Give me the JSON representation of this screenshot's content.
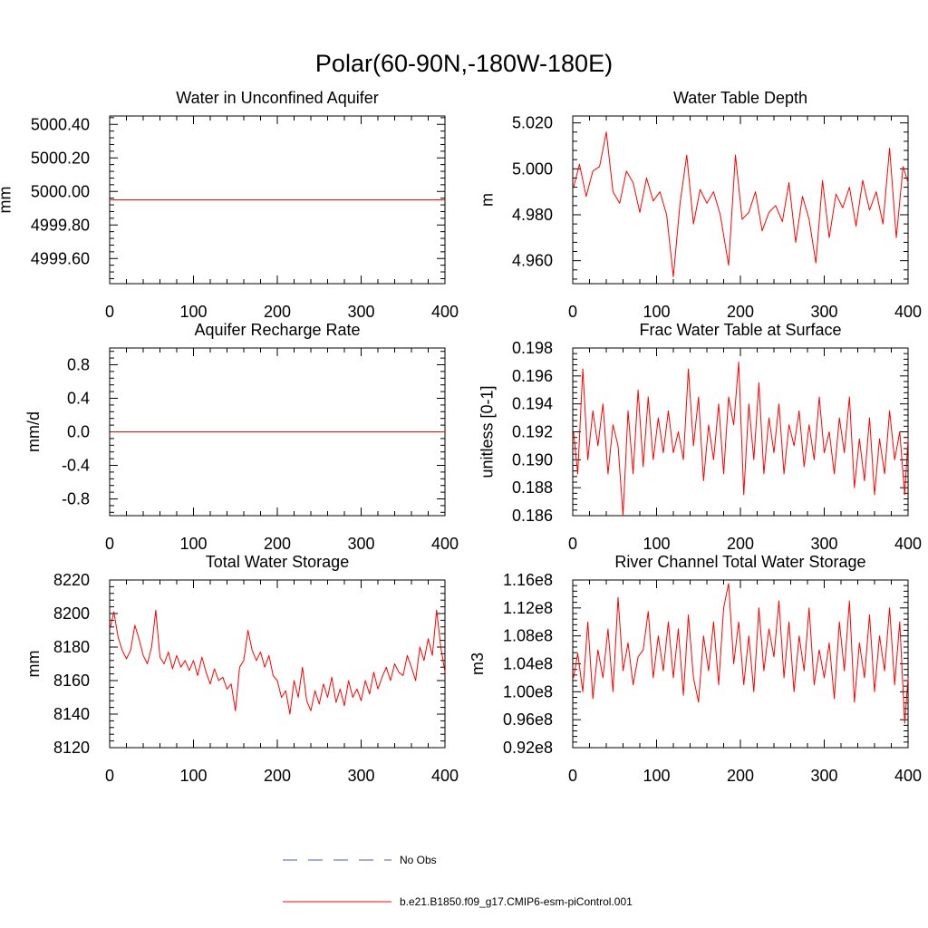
{
  "figure": {
    "title": "Polar(60-90N,-180W-180E)",
    "series_color": "#ff0000",
    "obs_color": "#4a5fa8"
  },
  "legend": {
    "obs_label": "No Obs",
    "model_label": "b.e21.B1850.f09_g17.CMIP6-esm-piControl.001"
  },
  "chart_data": [
    {
      "type": "line",
      "title": "Water in Unconfined Aquifer",
      "xlabel": "",
      "ylabel": "mm",
      "xlim": [
        0,
        400
      ],
      "ylim": [
        4999.45,
        5000.45
      ],
      "xticks": [
        0,
        100,
        200,
        300,
        400
      ],
      "xtick_labels": [
        "0",
        "100",
        "200",
        "300",
        "400"
      ],
      "yticks": [
        4999.6,
        4999.8,
        5000.0,
        5000.2,
        5000.4
      ],
      "ytick_labels": [
        "4999.60",
        "4999.80",
        "5000.00",
        "5000.20",
        "5000.40"
      ],
      "series": [
        {
          "name": "b.e21.B1850.f09_g17.CMIP6-esm-piControl.001",
          "x": [
            1,
            400
          ],
          "values": [
            4999.95,
            4999.95
          ]
        }
      ]
    },
    {
      "type": "line",
      "title": "Water Table Depth",
      "xlabel": "",
      "ylabel": "m",
      "xlim": [
        0,
        400
      ],
      "ylim": [
        4.95,
        5.023
      ],
      "xticks": [
        0,
        100,
        200,
        300,
        400
      ],
      "xtick_labels": [
        "0",
        "100",
        "200",
        "300",
        "400"
      ],
      "yticks": [
        4.96,
        4.98,
        5.0,
        5.02
      ],
      "ytick_labels": [
        "4.960",
        "4.980",
        "5.000",
        "5.020"
      ],
      "series": [
        {
          "name": "b.e21.B1850.f09_g17.CMIP6-esm-piControl.001",
          "x": [
            1,
            8,
            16,
            24,
            32,
            40,
            48,
            56,
            64,
            72,
            80,
            88,
            96,
            104,
            112,
            120,
            128,
            136,
            144,
            152,
            160,
            168,
            176,
            186,
            194,
            202,
            210,
            218,
            226,
            234,
            242,
            250,
            258,
            266,
            274,
            282,
            290,
            298,
            306,
            314,
            322,
            330,
            338,
            346,
            354,
            362,
            370,
            378,
            386,
            394,
            400
          ],
          "values": [
            4.992,
            5.002,
            4.988,
            4.999,
            5.001,
            5.016,
            4.99,
            4.985,
            4.999,
            4.994,
            4.981,
            4.996,
            4.986,
            4.99,
            4.98,
            4.953,
            4.985,
            5.006,
            4.976,
            4.991,
            4.985,
            4.99,
            4.98,
            4.958,
            5.006,
            4.978,
            4.981,
            4.99,
            4.973,
            4.981,
            4.984,
            4.977,
            4.994,
            4.968,
            4.988,
            4.978,
            4.959,
            4.995,
            4.97,
            4.989,
            4.983,
            4.992,
            4.975,
            4.995,
            4.982,
            4.99,
            4.976,
            5.009,
            4.97,
            5.001,
            4.994
          ]
        }
      ]
    },
    {
      "type": "line",
      "title": "Aquifer Recharge Rate",
      "xlabel": "",
      "ylabel": "mm/d",
      "xlim": [
        0,
        400
      ],
      "ylim": [
        -1.0,
        1.0
      ],
      "xticks": [
        0,
        100,
        200,
        300,
        400
      ],
      "xtick_labels": [
        "0",
        "100",
        "200",
        "300",
        "400"
      ],
      "yticks": [
        -0.8,
        -0.4,
        0.0,
        0.4,
        0.8
      ],
      "ytick_labels": [
        "-0.8",
        "-0.4",
        "0.0",
        "0.4",
        "0.8"
      ],
      "series": [
        {
          "name": "b.e21.B1850.f09_g17.CMIP6-esm-piControl.001",
          "x": [
            1,
            400
          ],
          "values": [
            0.0,
            0.0
          ]
        }
      ]
    },
    {
      "type": "line",
      "title": "Frac Water Table at Surface",
      "xlabel": "",
      "ylabel": "unitless [0-1]",
      "xlim": [
        0,
        400
      ],
      "ylim": [
        0.186,
        0.198
      ],
      "xticks": [
        0,
        100,
        200,
        300,
        400
      ],
      "xtick_labels": [
        "0",
        "100",
        "200",
        "300",
        "400"
      ],
      "yticks": [
        0.186,
        0.188,
        0.19,
        0.192,
        0.194,
        0.196,
        0.198
      ],
      "ytick_labels": [
        "0.186",
        "0.188",
        "0.190",
        "0.192",
        "0.194",
        "0.196",
        "0.198"
      ],
      "series": [
        {
          "name": "b.e21.B1850.f09_g17.CMIP6-esm-piControl.001",
          "x": [
            1,
            6,
            12,
            18,
            24,
            30,
            36,
            42,
            48,
            54,
            60,
            66,
            72,
            78,
            84,
            90,
            96,
            102,
            108,
            114,
            120,
            126,
            132,
            138,
            144,
            150,
            156,
            162,
            168,
            174,
            180,
            186,
            192,
            198,
            204,
            210,
            216,
            222,
            228,
            234,
            240,
            246,
            252,
            258,
            264,
            270,
            276,
            282,
            288,
            294,
            300,
            306,
            312,
            318,
            324,
            330,
            336,
            342,
            348,
            354,
            360,
            366,
            372,
            378,
            384,
            390,
            396,
            400
          ],
          "values": [
            0.192,
            0.189,
            0.1965,
            0.19,
            0.1935,
            0.191,
            0.194,
            0.189,
            0.1925,
            0.191,
            0.186,
            0.1935,
            0.189,
            0.195,
            0.1895,
            0.1945,
            0.19,
            0.193,
            0.1905,
            0.1935,
            0.1905,
            0.192,
            0.19,
            0.1965,
            0.191,
            0.1945,
            0.1885,
            0.1925,
            0.19,
            0.194,
            0.189,
            0.1945,
            0.1925,
            0.197,
            0.1875,
            0.194,
            0.19,
            0.1955,
            0.189,
            0.193,
            0.1905,
            0.194,
            0.189,
            0.1925,
            0.191,
            0.1935,
            0.1895,
            0.1925,
            0.19,
            0.1945,
            0.1905,
            0.192,
            0.189,
            0.193,
            0.1905,
            0.1945,
            0.188,
            0.1915,
            0.1885,
            0.193,
            0.1875,
            0.1915,
            0.189,
            0.1935,
            0.19,
            0.192,
            0.1875,
            0.1915
          ]
        }
      ]
    },
    {
      "type": "line",
      "title": "Total Water Storage",
      "xlabel": "",
      "ylabel": "mm",
      "xlim": [
        0,
        400
      ],
      "ylim": [
        8120,
        8220
      ],
      "xticks": [
        0,
        100,
        200,
        300,
        400
      ],
      "xtick_labels": [
        "0",
        "100",
        "200",
        "300",
        "400"
      ],
      "yticks": [
        8120,
        8140,
        8160,
        8180,
        8200,
        8220
      ],
      "ytick_labels": [
        "8120",
        "8140",
        "8160",
        "8180",
        "8200",
        "8220"
      ],
      "series": [
        {
          "name": "b.e21.B1850.f09_g17.CMIP6-esm-piControl.001",
          "x": [
            1,
            5,
            10,
            15,
            20,
            25,
            30,
            35,
            40,
            45,
            50,
            55,
            60,
            65,
            70,
            75,
            80,
            85,
            90,
            95,
            100,
            105,
            110,
            115,
            120,
            125,
            130,
            135,
            140,
            145,
            150,
            155,
            160,
            165,
            170,
            175,
            180,
            185,
            190,
            195,
            200,
            205,
            210,
            215,
            220,
            225,
            230,
            235,
            240,
            245,
            250,
            255,
            260,
            265,
            270,
            275,
            280,
            285,
            290,
            295,
            300,
            305,
            310,
            315,
            320,
            325,
            330,
            335,
            340,
            345,
            350,
            355,
            360,
            365,
            370,
            375,
            380,
            385,
            390,
            395,
            400
          ],
          "values": [
            8192,
            8201,
            8186,
            8178,
            8173,
            8178,
            8193,
            8185,
            8175,
            8170,
            8180,
            8202,
            8174,
            8170,
            8177,
            8167,
            8175,
            8168,
            8172,
            8166,
            8172,
            8163,
            8174,
            8165,
            8158,
            8167,
            8160,
            8162,
            8155,
            8158,
            8142,
            8168,
            8172,
            8190,
            8178,
            8172,
            8177,
            8168,
            8175,
            8163,
            8160,
            8150,
            8154,
            8140,
            8160,
            8150,
            8168,
            8148,
            8142,
            8154,
            8146,
            8158,
            8150,
            8162,
            8147,
            8155,
            8145,
            8160,
            8150,
            8155,
            8148,
            8160,
            8152,
            8165,
            8155,
            8162,
            8168,
            8160,
            8170,
            8165,
            8163,
            8175,
            8168,
            8160,
            8180,
            8172,
            8185,
            8175,
            8202,
            8180,
            8165
          ]
        }
      ]
    },
    {
      "type": "line",
      "title": "River Channel Total Water Storage",
      "xlabel": "",
      "ylabel": "m3",
      "xlim": [
        0,
        400
      ],
      "ylim": [
        0.92,
        1.16
      ],
      "xticks": [
        0,
        100,
        200,
        300,
        400
      ],
      "xtick_labels": [
        "0",
        "100",
        "200",
        "300",
        "400"
      ],
      "yticks": [
        0.92,
        0.96,
        1.0,
        1.04,
        1.08,
        1.12,
        1.16
      ],
      "ytick_labels": [
        "0.92e8",
        "0.96e8",
        "1.00e8",
        "1.04e8",
        "1.08e8",
        "1.12e8",
        "1.16e8"
      ],
      "series": [
        {
          "name": "b.e21.B1850.f09_g17.CMIP6-esm-piControl.001",
          "x": [
            1,
            6,
            12,
            18,
            24,
            30,
            36,
            42,
            48,
            54,
            60,
            66,
            72,
            78,
            84,
            90,
            96,
            102,
            108,
            114,
            120,
            126,
            132,
            138,
            144,
            150,
            156,
            162,
            168,
            174,
            180,
            186,
            192,
            198,
            204,
            210,
            216,
            222,
            228,
            234,
            240,
            246,
            252,
            258,
            264,
            270,
            276,
            282,
            288,
            294,
            300,
            306,
            312,
            318,
            324,
            330,
            336,
            342,
            348,
            354,
            360,
            366,
            372,
            378,
            384,
            390,
            396,
            400
          ],
          "values": [
            1.02,
            1.055,
            1.0,
            1.1,
            0.99,
            1.06,
            1.02,
            1.09,
            1.0,
            1.135,
            1.03,
            1.07,
            1.01,
            1.05,
            1.06,
            1.115,
            1.02,
            1.08,
            1.03,
            1.1,
            1.02,
            1.09,
            0.995,
            1.11,
            1.02,
            0.985,
            1.08,
            1.03,
            1.1,
            1.01,
            1.12,
            1.155,
            1.04,
            1.1,
            1.01,
            1.08,
            1.0,
            1.12,
            1.03,
            1.09,
            1.05,
            1.13,
            1.02,
            1.1,
            1.0,
            1.08,
            1.03,
            1.12,
            1.01,
            1.06,
            1.02,
            1.07,
            0.99,
            1.1,
            1.03,
            1.13,
            0.985,
            1.07,
            1.02,
            1.11,
            1.0,
            1.08,
            1.03,
            1.12,
            1.01,
            1.1,
            0.955,
            1.02
          ]
        }
      ]
    }
  ]
}
